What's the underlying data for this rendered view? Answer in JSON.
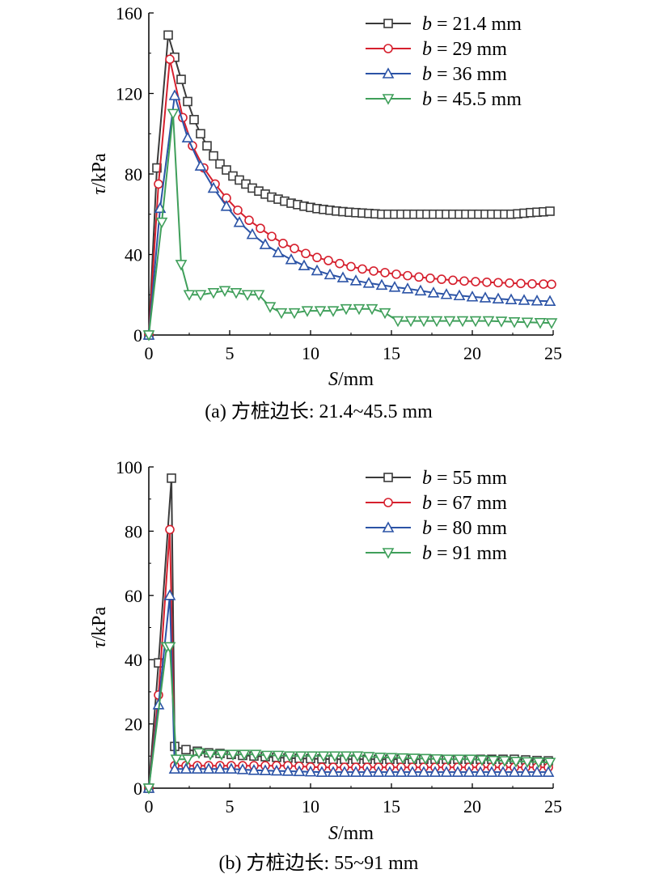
{
  "chart_data": [
    {
      "type": "line",
      "caption": "(a) 方桩边长: 21.4~45.5 mm",
      "xlabel": "S/mm",
      "ylabel": "τ/kPa",
      "xlim": [
        0,
        25
      ],
      "ylim": [
        0,
        160
      ],
      "xticks": [
        "0",
        "5",
        "10",
        "15",
        "20",
        "25"
      ],
      "yticks": [
        "0",
        "40",
        "80",
        "120",
        "160"
      ],
      "legend_position": "top-right",
      "grid": false,
      "series": [
        {
          "name": "b = 21.4 mm",
          "color": "#3a3a3a",
          "marker": "square",
          "x": [
            0,
            0.5,
            1.2,
            1.6,
            2.0,
            2.4,
            2.8,
            3.2,
            3.6,
            4.0,
            4.4,
            4.8,
            5.2,
            5.6,
            6.0,
            6.4,
            6.8,
            7.2,
            7.6,
            8.0,
            8.4,
            8.8,
            9.2,
            9.6,
            10.0,
            10.4,
            10.8,
            11.2,
            11.6,
            12.0,
            12.4,
            12.8,
            13.2,
            13.6,
            14.0,
            14.4,
            14.8,
            15.2,
            15.6,
            16.0,
            16.4,
            16.8,
            17.2,
            17.6,
            18.0,
            18.4,
            18.8,
            19.2,
            19.6,
            20.0,
            20.4,
            20.8,
            21.2,
            21.6,
            22.0,
            22.4,
            22.8,
            23.2,
            23.6,
            24.0,
            24.4,
            24.8
          ],
          "y": [
            0,
            83,
            149,
            138,
            127,
            116,
            107,
            100,
            94,
            89,
            85,
            82,
            79,
            77,
            75,
            73,
            71.5,
            70,
            68.5,
            67.5,
            66.5,
            65.5,
            64.8,
            64,
            63.4,
            62.8,
            62.4,
            62,
            61.6,
            61.3,
            61,
            60.8,
            60.6,
            60.4,
            60.2,
            60,
            60,
            60,
            60,
            60,
            60,
            60,
            60,
            60,
            60,
            60,
            60,
            60,
            60,
            60,
            60,
            60,
            60,
            60,
            60,
            60,
            60.2,
            60.5,
            60.8,
            61,
            61.2,
            61.5
          ]
        },
        {
          "name": "b = 29 mm",
          "color": "#d6202e",
          "marker": "circle",
          "x": [
            0,
            0.6,
            1.3,
            2.1,
            2.7,
            3.4,
            4.1,
            4.8,
            5.5,
            6.2,
            6.9,
            7.6,
            8.3,
            9.0,
            9.7,
            10.4,
            11.1,
            11.8,
            12.5,
            13.2,
            13.9,
            14.6,
            15.3,
            16.0,
            16.7,
            17.4,
            18.1,
            18.8,
            19.5,
            20.2,
            20.9,
            21.6,
            22.3,
            23.0,
            23.7,
            24.4,
            24.9
          ],
          "y": [
            0,
            75,
            137,
            108,
            94,
            83,
            75,
            68,
            62,
            57,
            53,
            49,
            45.5,
            43,
            40.5,
            38.5,
            37,
            35.5,
            34,
            32.8,
            31.8,
            31,
            30.2,
            29.5,
            28.8,
            28.2,
            27.7,
            27.2,
            26.8,
            26.5,
            26.2,
            26,
            25.8,
            25.6,
            25.4,
            25.3,
            25.2
          ]
        },
        {
          "name": "b = 36 mm",
          "color": "#2b53a6",
          "marker": "triangle-up",
          "x": [
            0,
            0.7,
            1.6,
            2.4,
            3.2,
            4.0,
            4.8,
            5.6,
            6.4,
            7.2,
            8.0,
            8.8,
            9.6,
            10.4,
            11.2,
            12.0,
            12.8,
            13.6,
            14.4,
            15.2,
            16.0,
            16.8,
            17.6,
            18.4,
            19.2,
            20.0,
            20.8,
            21.6,
            22.4,
            23.2,
            24.0,
            24.8
          ],
          "y": [
            0,
            63,
            119,
            98,
            84,
            73,
            64,
            56,
            50,
            45,
            41,
            37.5,
            34.5,
            32,
            30,
            28.5,
            27,
            25.8,
            24.8,
            23.8,
            23,
            22,
            21,
            20.2,
            19.6,
            19,
            18.5,
            18,
            17.6,
            17.3,
            17,
            16.8
          ]
        },
        {
          "name": "b = 45.5 mm",
          "color": "#3f9f5a",
          "marker": "triangle-down",
          "x": [
            0,
            0.8,
            1.5,
            2.0,
            2.5,
            3.2,
            4.0,
            4.7,
            5.4,
            6.1,
            6.8,
            7.5,
            8.2,
            9.0,
            9.8,
            10.6,
            11.4,
            12.2,
            13.0,
            13.8,
            14.6,
            15.4,
            16.2,
            17.0,
            17.8,
            18.6,
            19.4,
            20.2,
            21.0,
            21.8,
            22.6,
            23.4,
            24.2,
            24.9
          ],
          "y": [
            0,
            56,
            110,
            35,
            20,
            20,
            21,
            22,
            21,
            20,
            20,
            14,
            11,
            11,
            12,
            12,
            12,
            13,
            13,
            13,
            11,
            7,
            7,
            7,
            7,
            7,
            7,
            7,
            7,
            6.8,
            6.5,
            6.3,
            6.1,
            6
          ]
        }
      ]
    },
    {
      "type": "line",
      "caption": "(b) 方桩边长: 55~91 mm",
      "xlabel": "S/mm",
      "ylabel": "τ/kPa",
      "xlim": [
        0,
        25
      ],
      "ylim": [
        0,
        100
      ],
      "xticks": [
        "0",
        "5",
        "10",
        "15",
        "20",
        "25"
      ],
      "yticks": [
        "0",
        "20",
        "40",
        "60",
        "80",
        "100"
      ],
      "legend_position": "top-right",
      "grid": false,
      "series": [
        {
          "name": "b = 55 mm",
          "color": "#3a3a3a",
          "marker": "square",
          "x": [
            0,
            0.6,
            1.4,
            1.6,
            2.3,
            3.0,
            3.7,
            4.4,
            5.1,
            5.8,
            6.5,
            7.2,
            7.9,
            8.6,
            9.3,
            10.0,
            10.7,
            11.4,
            12.1,
            12.8,
            13.5,
            14.2,
            14.9,
            15.6,
            16.3,
            17.0,
            17.7,
            18.4,
            19.1,
            19.8,
            20.5,
            21.2,
            21.9,
            22.6,
            23.3,
            24.0,
            24.7
          ],
          "y": [
            0,
            39,
            96.5,
            13,
            12,
            11.5,
            11,
            10.8,
            10.5,
            10.2,
            10,
            9.8,
            9.6,
            9.4,
            9.3,
            9.2,
            9.1,
            9,
            9,
            9,
            9,
            9,
            9,
            9,
            9,
            9,
            9,
            9,
            9,
            9,
            9,
            9,
            9,
            9,
            8.8,
            8.6,
            8.5
          ]
        },
        {
          "name": "b = 67 mm",
          "color": "#d6202e",
          "marker": "circle",
          "x": [
            0,
            0.6,
            1.3,
            1.6,
            2.3,
            3.0,
            3.7,
            4.4,
            5.1,
            5.8,
            6.5,
            7.2,
            7.9,
            8.6,
            9.3,
            10.0,
            10.7,
            11.4,
            12.1,
            12.8,
            13.5,
            14.2,
            14.9,
            15.6,
            16.3,
            17.0,
            17.7,
            18.4,
            19.1,
            19.8,
            20.5,
            21.2,
            21.9,
            22.6,
            23.3,
            24.0,
            24.7
          ],
          "y": [
            0,
            29,
            80.5,
            7,
            7,
            7,
            7,
            7,
            7,
            7,
            7,
            7,
            7,
            7,
            6.8,
            6.6,
            6.5,
            6.5,
            6.5,
            6.5,
            6.5,
            6.5,
            6.5,
            6.5,
            6.5,
            6.5,
            6.5,
            6.5,
            6.5,
            6.5,
            6.5,
            6.5,
            6.5,
            6.5,
            6.5,
            6.5,
            6.5
          ]
        },
        {
          "name": "b = 80 mm",
          "color": "#2b53a6",
          "marker": "triangle-up",
          "x": [
            0,
            0.6,
            1.3,
            1.6,
            2.3,
            3.0,
            3.7,
            4.4,
            5.1,
            5.8,
            6.5,
            7.2,
            7.9,
            8.6,
            9.3,
            10.0,
            10.7,
            11.4,
            12.1,
            12.8,
            13.5,
            14.2,
            14.9,
            15.6,
            16.3,
            17.0,
            17.7,
            18.4,
            19.1,
            19.8,
            20.5,
            21.2,
            21.9,
            22.6,
            23.3,
            24.0,
            24.7
          ],
          "y": [
            0,
            26,
            60,
            6,
            6,
            6,
            6,
            6,
            6,
            5.8,
            5.6,
            5.5,
            5.4,
            5.3,
            5.2,
            5.1,
            5,
            5,
            5,
            5,
            5,
            5,
            5,
            5,
            5,
            5,
            5,
            5,
            5,
            5,
            5,
            5,
            5,
            5,
            5,
            5,
            5
          ]
        },
        {
          "name": "b = 91 mm",
          "color": "#3f9f5a",
          "marker": "triangle-down",
          "x": [
            0,
            1.1,
            1.3,
            1.7,
            2.4,
            3.1,
            3.8,
            4.5,
            5.2,
            5.9,
            6.6,
            7.3,
            8.0,
            8.7,
            9.4,
            10.1,
            10.8,
            11.5,
            12.2,
            12.9,
            13.6,
            14.3,
            15.0,
            15.7,
            16.4,
            17.1,
            17.8,
            18.5,
            19.2,
            19.9,
            20.6,
            21.3,
            22.0,
            22.7,
            23.4,
            24.1,
            24.8
          ],
          "y": [
            0,
            44,
            44,
            9,
            9,
            11,
            10.5,
            10.5,
            10.5,
            10.5,
            10.5,
            10.2,
            10.2,
            10,
            10,
            10,
            10,
            10,
            10,
            10,
            9.8,
            9.6,
            9.5,
            9.4,
            9.3,
            9.2,
            9.1,
            9,
            9,
            9,
            8.8,
            8.6,
            8.5,
            8.3,
            8.2,
            8.1,
            8
          ]
        }
      ]
    }
  ]
}
